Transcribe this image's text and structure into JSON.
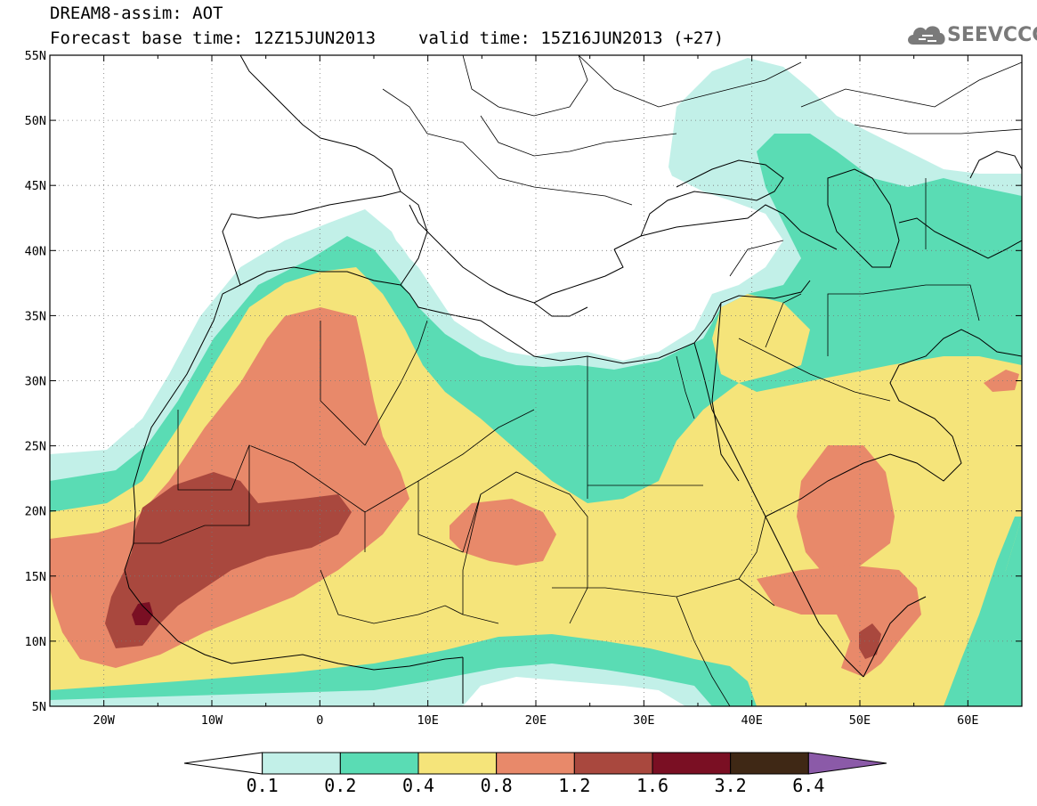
{
  "title": {
    "line1": "DREAM8-assim: AOT",
    "base_time": "Forecast base time: 12Z15JUN2013",
    "valid_time": "valid time: 15Z16JUN2013 (+27)"
  },
  "logo": {
    "text": "SEEVCCC"
  },
  "axes": {
    "lon_labels": [
      "20W",
      "10W",
      "0",
      "10E",
      "20E",
      "30E",
      "40E",
      "50E",
      "60E"
    ],
    "lat_labels": [
      "55N",
      "50N",
      "45N",
      "40N",
      "35N",
      "30N",
      "25N",
      "20N",
      "15N",
      "10N",
      "5N"
    ],
    "lon_range": [
      -25,
      65
    ],
    "lat_range": [
      5,
      55
    ]
  },
  "colorbar": {
    "labels": [
      "0.1",
      "0.2",
      "0.4",
      "0.8",
      "1.2",
      "1.6",
      "3.2",
      "6.4"
    ],
    "colors": [
      "#ffffff",
      "#c2f0e8",
      "#5adcb4",
      "#f5e47a",
      "#e8896a",
      "#a9483e",
      "#7a0f23",
      "#3f2815",
      "#8b5aa8"
    ]
  }
}
